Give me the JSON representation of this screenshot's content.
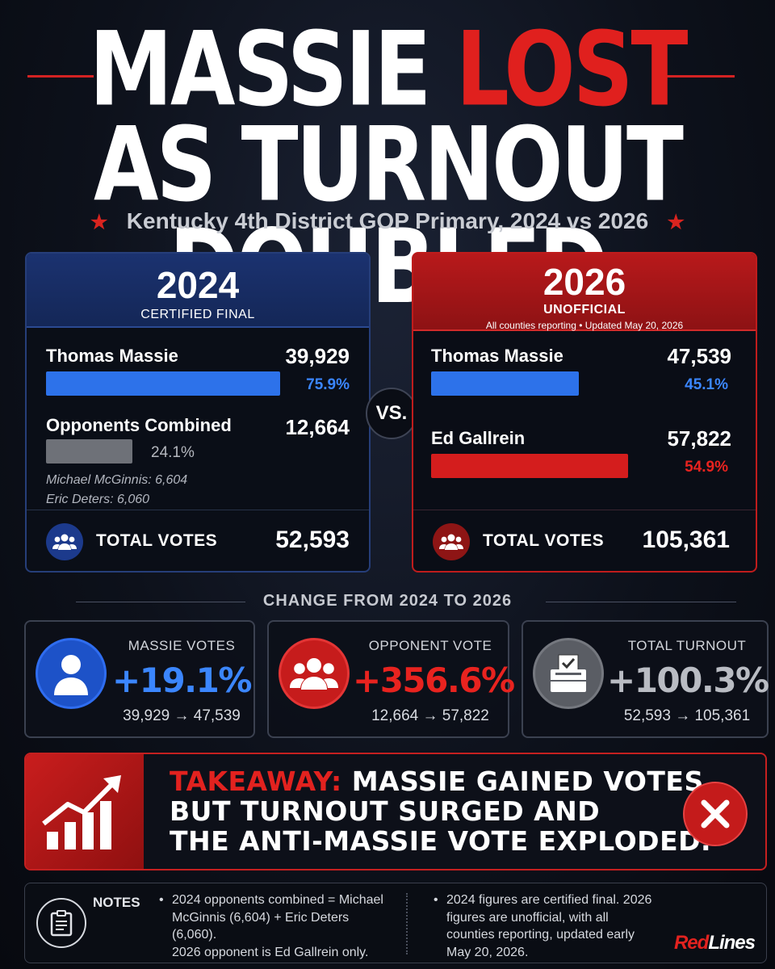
{
  "header": {
    "title_line1_white": "MASSIE",
    "title_line1_red": "LOST",
    "title_line2": "AS TURNOUT DOUBLED",
    "subtitle": "Kentucky 4th District GOP Primary, 2024 vs 2026"
  },
  "panel_2024": {
    "year": "2024",
    "status": "CERTIFIED FINAL",
    "candidate1_name": "Thomas Massie",
    "candidate1_votes": "39,929",
    "candidate1_pct": "75.9%",
    "candidate1_share": 0.759,
    "opponents_name": "Opponents Combined",
    "opponents_votes": "12,664",
    "opponents_pct": "24.1%",
    "opponents_share": 0.241,
    "detail1": "Michael McGinnis: 6,604",
    "detail2": "Eric Deters: 6,060",
    "total_label": "TOTAL VOTES",
    "total_value": "52,593"
  },
  "vs_label": "VS.",
  "panel_2026": {
    "year": "2026",
    "status": "UNOFFICIAL",
    "status_note": "All counties reporting • Updated May 20, 2026",
    "candidate1_name": "Thomas Massie",
    "candidate1_votes": "47,539",
    "candidate1_pct": "45.1%",
    "candidate1_share": 0.451,
    "candidate2_name": "Ed Gallrein",
    "candidate2_votes": "57,822",
    "candidate2_pct": "54.9%",
    "candidate2_share": 0.549,
    "total_label": "TOTAL VOTES",
    "total_value": "105,361"
  },
  "change": {
    "title": "CHANGE FROM 2024 TO 2026",
    "cards": [
      {
        "label": "MASSIE VOTES",
        "value": "+19.1%",
        "range": "39,929 → 47,539",
        "icon": "person-icon",
        "color": "#3b86ff"
      },
      {
        "label": "OPPONENT VOTE",
        "value": "+356.6%",
        "range": "12,664 → 57,822",
        "icon": "group-icon",
        "color": "#e8231f"
      },
      {
        "label": "TOTAL TURNOUT",
        "value": "+100.3%",
        "range": "52,593 → 105,361",
        "icon": "ballot-box-icon",
        "color": "#b9bcc3"
      }
    ]
  },
  "takeaway": {
    "label": "TAKEAWAY:",
    "line1": "MASSIE GAINED VOTES,",
    "line2": "BUT TURNOUT SURGED AND",
    "line3": "THE ANTI-MASSIE VOTE EXPLODED."
  },
  "notes": {
    "label": "NOTES",
    "col1_item1": "2024 opponents combined = Michael McGinnis (6,604) + Eric Deters (6,060).",
    "col1_item2": "2026 opponent is Ed Gallrein only.",
    "col2_item1": "2024 figures are certified final. 2026 figures are unofficial, with all counties reporting, updated early May 20, 2026."
  },
  "brand": {
    "part1": "Red",
    "part2": "Lines"
  },
  "colors": {
    "accent_red": "#e0201e",
    "accent_blue": "#3b86ff",
    "gray": "#7a7d84"
  }
}
